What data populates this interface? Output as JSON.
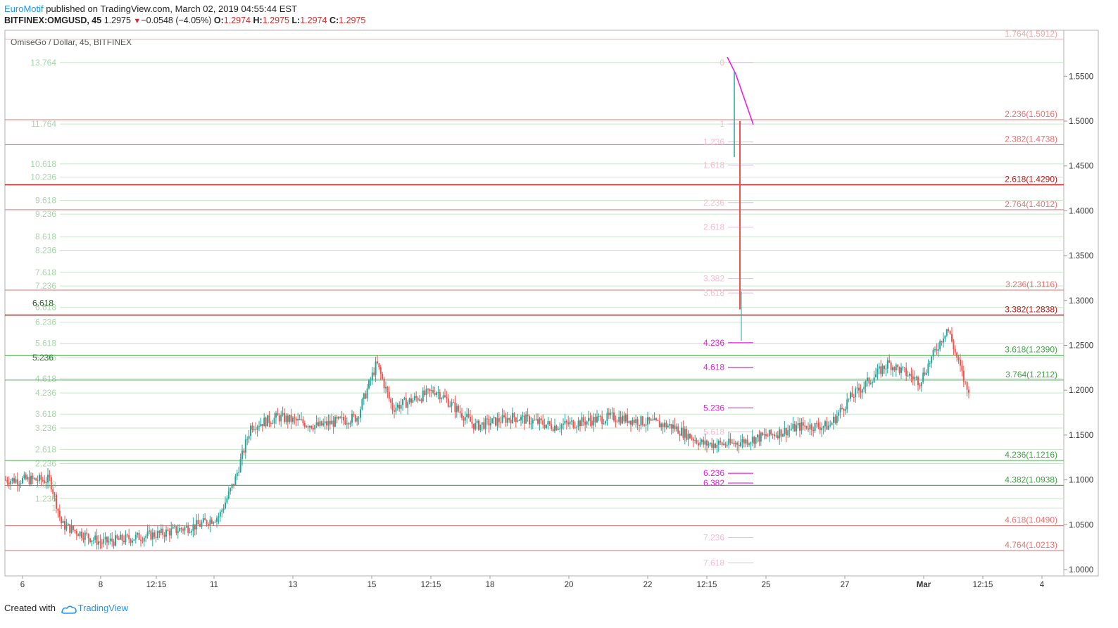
{
  "header": {
    "author": "EuroMotif",
    "published": " published on TradingView.com, March 02, 2019 04:55:44 EST",
    "symbol": "BITFINEX:OMGUSD, 45",
    "last": "1.2975",
    "change": "−0.0548 (−4.05%)",
    "o_label": "O:",
    "o": "1.2974",
    "h_label": "H:",
    "h": "1.2975",
    "l_label": "L:",
    "l": "1.2974",
    "c_label": "C:",
    "c": "1.2975"
  },
  "footer": {
    "created": "Created with",
    "brand": "TradingView"
  },
  "colors": {
    "up": "#26a69a",
    "down": "#ef5350",
    "fib_green": "#4caf50",
    "fib_red": "#ef5350",
    "fib_darkred": "#b71c1c",
    "magenta": "#e91ee1",
    "faint_green": "#c8e6c9",
    "faint_pink": "#f8bbd0"
  },
  "chart_data": {
    "type": "candlestick",
    "title": "OmiseGo / Dollar, 45, BITFINEX",
    "ylim": [
      0.98,
      1.585
    ],
    "y_ticks": [
      "1.0000",
      "1.0500",
      "1.1000",
      "1.1500",
      "1.2000",
      "1.2500",
      "1.3000",
      "1.3500",
      "1.4000",
      "1.4500",
      "1.5000",
      "1.5500"
    ],
    "x_ticks": [
      "6",
      "8",
      "12:15",
      "11",
      "13",
      "15",
      "12:15",
      "18",
      "20",
      "22",
      "12:15",
      "25",
      "27",
      "Mar",
      "12:15",
      "4"
    ],
    "bold_x_ticks": [
      "Mar"
    ],
    "price_path": [
      [
        0,
        1.1
      ],
      [
        0.7,
        1.1
      ],
      [
        1.0,
        1.05
      ],
      [
        2.0,
        1.03
      ],
      [
        3.5,
        1.04
      ],
      [
        4.5,
        1.05
      ],
      [
        5.0,
        1.06
      ],
      [
        5.4,
        1.1
      ],
      [
        5.8,
        1.16
      ],
      [
        6.5,
        1.17
      ],
      [
        7.5,
        1.16
      ],
      [
        8.5,
        1.17
      ],
      [
        9.0,
        1.23
      ],
      [
        9.4,
        1.18
      ],
      [
        10.5,
        1.2
      ],
      [
        11.5,
        1.16
      ],
      [
        12.5,
        1.17
      ],
      [
        13.5,
        1.16
      ],
      [
        15.0,
        1.17
      ],
      [
        16.5,
        1.16
      ],
      [
        17.3,
        1.14
      ],
      [
        18.0,
        1.14
      ],
      [
        19.0,
        1.15
      ],
      [
        19.8,
        1.16
      ],
      [
        20.5,
        1.16
      ],
      [
        21.0,
        1.19
      ],
      [
        22.0,
        1.23
      ],
      [
        22.8,
        1.21
      ],
      [
        23.5,
        1.27
      ],
      [
        24.0,
        1.2
      ],
      [
        25.0,
        1.26
      ],
      [
        26.0,
        1.3
      ],
      [
        26.5,
        1.34
      ],
      [
        27.5,
        1.33
      ],
      [
        28.3,
        1.3
      ],
      [
        29.0,
        1.35
      ],
      [
        30.0,
        1.35
      ],
      [
        31.0,
        1.33
      ],
      [
        31.5,
        1.28
      ],
      [
        32.3,
        1.31
      ],
      [
        33.0,
        1.34
      ],
      [
        34.0,
        1.32
      ],
      [
        35.0,
        1.32
      ],
      [
        35.5,
        1.3
      ],
      [
        36.0,
        1.34
      ],
      [
        36.5,
        1.37
      ],
      [
        37.0,
        1.43
      ],
      [
        37.3,
        1.52
      ],
      [
        37.6,
        1.51
      ],
      [
        37.72,
        1.45
      ],
      [
        37.95,
        1.29
      ],
      [
        38.5,
        1.35
      ],
      [
        38.9,
        1.37
      ],
      [
        40.0,
        1.34
      ],
      [
        41.0,
        1.35
      ],
      [
        41.8,
        1.36
      ],
      [
        42.5,
        1.38
      ],
      [
        43.5,
        1.36
      ],
      [
        44.5,
        1.34
      ],
      [
        45.5,
        1.33
      ],
      [
        46.5,
        1.34
      ],
      [
        47.2,
        1.35
      ],
      [
        47.7,
        1.37
      ],
      [
        48.2,
        1.34
      ],
      [
        48.5,
        1.3
      ],
      [
        48.6,
        1.297
      ]
    ],
    "fib_extension_left": {
      "color": "light-green",
      "levels": [
        {
          "label": "13.764",
          "value": 1.5653
        },
        {
          "label": "11.764",
          "value": 1.4968
        },
        {
          "label": "10.618",
          "value": 1.4522
        },
        {
          "label": "10.236",
          "value": 1.4375
        },
        {
          "label": "9.618",
          "value": 1.4117
        },
        {
          "label": "9.236",
          "value": 1.3963
        },
        {
          "label": "8.618",
          "value": 1.3711
        },
        {
          "label": "8.236",
          "value": 1.356
        },
        {
          "label": "7.618",
          "value": 1.3313
        },
        {
          "label": "7.236",
          "value": 1.3162
        },
        {
          "label": "6.618",
          "value": 1.2922
        },
        {
          "label": "6.236",
          "value": 1.2758
        },
        {
          "label": "5.618",
          "value": 1.2523
        },
        {
          "label": "5.236",
          "value": 1.2364
        },
        {
          "label": "4.618",
          "value": 1.2127
        },
        {
          "label": "4.236",
          "value": 1.1969
        },
        {
          "label": "3.618",
          "value": 1.1733
        },
        {
          "label": "3.236",
          "value": 1.1578
        },
        {
          "label": "2.618",
          "value": 1.1339
        },
        {
          "label": "2.236",
          "value": 1.1181
        },
        {
          "label": "1.618",
          "value": 1.0944
        },
        {
          "label": "1.236",
          "value": 1.0788
        },
        {
          "label": "1",
          "value": 1.0685
        }
      ]
    },
    "fib_extension_right": {
      "color": "green / red",
      "levels": [
        {
          "label": "1.764(1.5912)",
          "value": 1.5912,
          "tone": "pink"
        },
        {
          "label": "2.236(1.5016)",
          "value": 1.5016,
          "tone": "red"
        },
        {
          "label": "2.382(1.4738)",
          "value": 1.4738,
          "tone": "red"
        },
        {
          "label": "2.618(1.4290)",
          "value": 1.429,
          "tone": "darkred"
        },
        {
          "label": "2.764(1.4012)",
          "value": 1.4012,
          "tone": "red"
        },
        {
          "label": "3.236(1.3116)",
          "value": 1.3116,
          "tone": "red"
        },
        {
          "label": "3.382(1.2838)",
          "value": 1.2838,
          "tone": "darkred"
        },
        {
          "label": "3.618(1.2390)",
          "value": 1.239,
          "tone": "green"
        },
        {
          "label": "3.764(1.2112)",
          "value": 1.2112,
          "tone": "green"
        },
        {
          "label": "4.236(1.1216)",
          "value": 1.1216,
          "tone": "green"
        },
        {
          "label": "4.382(1.0938)",
          "value": 1.0938,
          "tone": "green"
        },
        {
          "label": "4.618(1.0490)",
          "value": 1.049,
          "tone": "red"
        },
        {
          "label": "4.764(1.0213)",
          "value": 1.0213,
          "tone": "red"
        }
      ]
    },
    "fib_spike": {
      "levels": [
        {
          "label": "0",
          "value": 1.5653,
          "tone": "faint"
        },
        {
          "label": "1",
          "value": 1.4968,
          "tone": "faint"
        },
        {
          "label": "1.236",
          "value": 1.4767,
          "tone": "faint"
        },
        {
          "label": "1.618",
          "value": 1.4508,
          "tone": "faint"
        },
        {
          "label": "2.236",
          "value": 1.4091,
          "tone": "faint"
        },
        {
          "label": "2.618",
          "value": 1.3817,
          "tone": "faint"
        },
        {
          "label": "3.382",
          "value": 1.3245,
          "tone": "faint"
        },
        {
          "label": "3.618",
          "value": 1.3084,
          "tone": "faint"
        },
        {
          "label": "4.236",
          "value": 1.2529,
          "tone": "magenta"
        },
        {
          "label": "4.618",
          "value": 1.2255,
          "tone": "magenta"
        },
        {
          "label": "5.236",
          "value": 1.1803,
          "tone": "magenta"
        },
        {
          "label": "5.618",
          "value": 1.1536,
          "tone": "faint"
        },
        {
          "label": "6.236",
          "value": 1.1074,
          "tone": "magenta"
        },
        {
          "label": "6.382",
          "value": 1.0965,
          "tone": "magenta"
        },
        {
          "label": "7.236",
          "value": 1.0356,
          "tone": "faint"
        },
        {
          "label": "7.618",
          "value": 1.0074,
          "tone": "faint"
        }
      ]
    }
  }
}
